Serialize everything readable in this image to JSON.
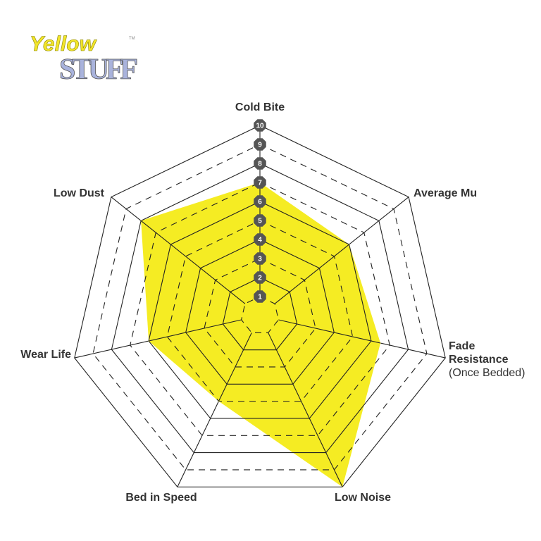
{
  "logo": {
    "line1": "Yellow",
    "line2": "STUFF",
    "mark": "TM",
    "colors": {
      "yellow": "#f2e52a",
      "stuff": "#a9b3dc"
    }
  },
  "chart_data": {
    "type": "radar",
    "title": "",
    "axes": [
      {
        "label": "Cold Bite",
        "sublabel": ""
      },
      {
        "label": "Average Mu",
        "sublabel": ""
      },
      {
        "label": "Fade",
        "label2": "Resistance",
        "sublabel": "(Once Bedded)"
      },
      {
        "label": "Low Noise",
        "sublabel": ""
      },
      {
        "label": "Bed in Speed",
        "sublabel": ""
      },
      {
        "label": "Wear Life",
        "sublabel": ""
      },
      {
        "label": "Low Dust",
        "sublabel": ""
      }
    ],
    "values": [
      7,
      6,
      6.5,
      10,
      5,
      6,
      8
    ],
    "range": [
      0,
      10
    ],
    "ticks": [
      "1",
      "2",
      "3",
      "4",
      "5",
      "6",
      "7",
      "8",
      "9",
      "10"
    ],
    "fill_color": "#f5ec23",
    "grid_color": "#222222",
    "badge_color": "#555555",
    "legend": "none"
  }
}
